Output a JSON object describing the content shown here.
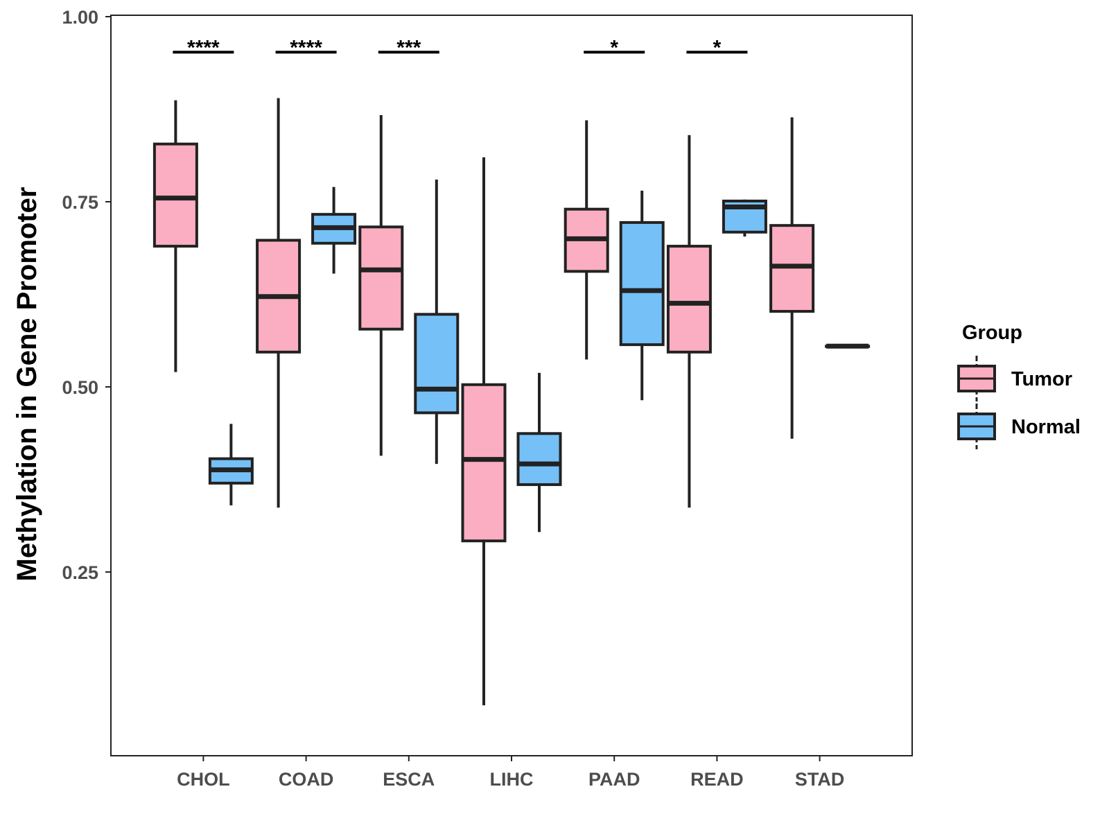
{
  "chart_data": {
    "type": "boxplot",
    "title": "",
    "xlabel": "",
    "ylabel": "Methylation in Gene Promoter",
    "ylim": [
      0.0,
      1.0
    ],
    "yticks": [
      0.25,
      0.5,
      0.75,
      1.0
    ],
    "ytick_labels": [
      "0.25",
      "0.50",
      "0.75",
      "1.00"
    ],
    "categories": [
      "CHOL",
      "COAD",
      "ESCA",
      "LIHC",
      "PAAD",
      "READ",
      "STAD"
    ],
    "legend": {
      "title": "Group",
      "position": "right",
      "entries": [
        {
          "name": "Tumor",
          "color": "#FBAEC1"
        },
        {
          "name": "Normal",
          "color": "#75C0F7"
        }
      ]
    },
    "series": [
      {
        "name": "Tumor",
        "color": "#FBAEC1",
        "boxes": [
          {
            "category": "CHOL",
            "min": 0.52,
            "q1": 0.69,
            "median": 0.755,
            "q3": 0.828,
            "max": 0.887
          },
          {
            "category": "COAD",
            "min": 0.337,
            "q1": 0.547,
            "median": 0.622,
            "q3": 0.698,
            "max": 0.89
          },
          {
            "category": "ESCA",
            "min": 0.407,
            "q1": 0.578,
            "median": 0.658,
            "q3": 0.716,
            "max": 0.867
          },
          {
            "category": "LIHC",
            "min": 0.07,
            "q1": 0.292,
            "median": 0.402,
            "q3": 0.503,
            "max": 0.81
          },
          {
            "category": "PAAD",
            "min": 0.537,
            "q1": 0.656,
            "median": 0.7,
            "q3": 0.74,
            "max": 0.86
          },
          {
            "category": "READ",
            "min": 0.337,
            "q1": 0.547,
            "median": 0.613,
            "q3": 0.69,
            "max": 0.84
          },
          {
            "category": "STAD",
            "min": 0.43,
            "q1": 0.602,
            "median": 0.663,
            "q3": 0.718,
            "max": 0.864
          }
        ]
      },
      {
        "name": "Normal",
        "color": "#75C0F7",
        "boxes": [
          {
            "category": "CHOL",
            "min": 0.34,
            "q1": 0.37,
            "median": 0.388,
            "q3": 0.403,
            "max": 0.45
          },
          {
            "category": "COAD",
            "min": 0.653,
            "q1": 0.694,
            "median": 0.715,
            "q3": 0.733,
            "max": 0.77
          },
          {
            "category": "ESCA",
            "min": 0.396,
            "q1": 0.465,
            "median": 0.497,
            "q3": 0.598,
            "max": 0.78
          },
          {
            "category": "LIHC",
            "min": 0.304,
            "q1": 0.368,
            "median": 0.396,
            "q3": 0.437,
            "max": 0.519
          },
          {
            "category": "PAAD",
            "min": 0.482,
            "q1": 0.557,
            "median": 0.63,
            "q3": 0.722,
            "max": 0.765
          },
          {
            "category": "READ",
            "min": 0.703,
            "q1": 0.709,
            "median": 0.743,
            "q3": 0.751,
            "max": 0.753
          },
          {
            "category": "STAD",
            "min": 0.555,
            "q1": 0.555,
            "median": 0.555,
            "q3": 0.555,
            "max": 0.555
          }
        ]
      }
    ],
    "significance": [
      {
        "category": "CHOL",
        "label": "****",
        "y": 0.952
      },
      {
        "category": "COAD",
        "label": "****",
        "y": 0.952
      },
      {
        "category": "ESCA",
        "label": "***",
        "y": 0.952
      },
      {
        "category": "PAAD",
        "label": "*",
        "y": 0.952
      },
      {
        "category": "READ",
        "label": "*",
        "y": 0.952
      }
    ]
  }
}
